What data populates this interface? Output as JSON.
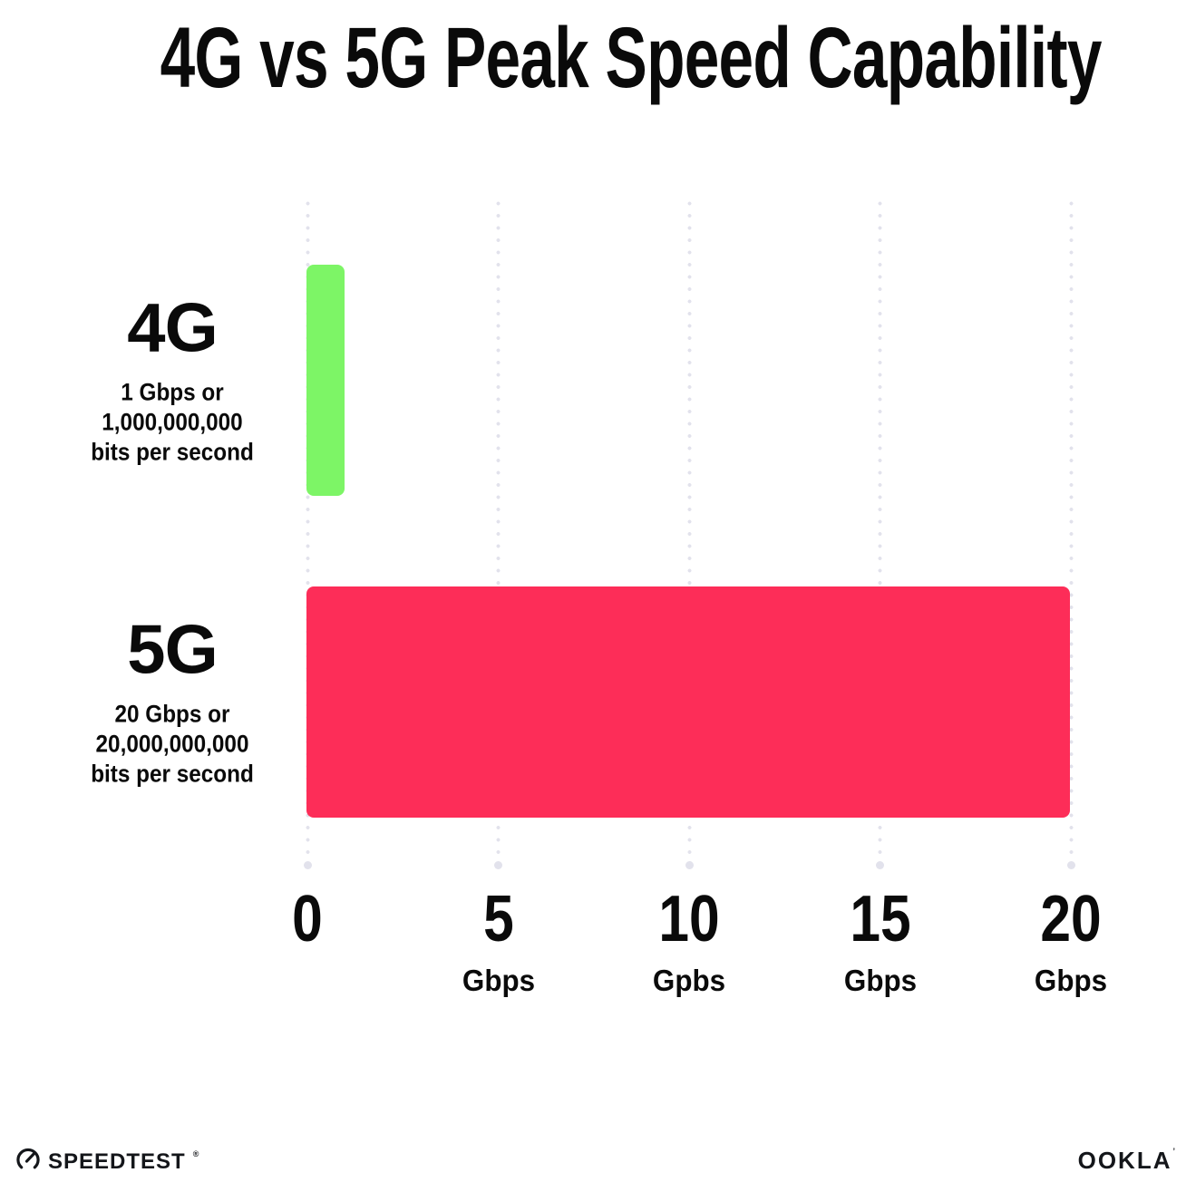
{
  "title": "4G vs 5G Peak Speed Capability",
  "chart_data": {
    "type": "bar",
    "orientation": "horizontal",
    "title": "4G vs 5G Peak Speed Capability",
    "categories": [
      "4G",
      "5G"
    ],
    "values": [
      1,
      20
    ],
    "series": [
      {
        "name": "4G",
        "value_gbps": 1,
        "bar_color": "#7DF566",
        "description_lines": [
          "1 Gbps or",
          "1,000,000,000",
          "bits per second"
        ]
      },
      {
        "name": "5G",
        "value_gbps": 20,
        "bar_color": "#FD2D58",
        "description_lines": [
          "20 Gbps or",
          "20,000,000,000",
          "bits per second"
        ]
      }
    ],
    "xlabel": "",
    "ylabel": "",
    "xlim": [
      0,
      20
    ],
    "x_ticks": [
      {
        "value": 0,
        "label": "0",
        "unit": ""
      },
      {
        "value": 5,
        "label": "5",
        "unit": "Gbps"
      },
      {
        "value": 10,
        "label": "10",
        "unit": "Gpbs"
      },
      {
        "value": 15,
        "label": "15",
        "unit": "Gbps"
      },
      {
        "value": 20,
        "label": "20",
        "unit": "Gbps"
      }
    ],
    "grid": "vertical-dotted",
    "gridline_color": "#E2E2EC",
    "legend": "none",
    "text_color": "#0A0A0A",
    "background_color": "#FFFFFF"
  },
  "footer": {
    "speedtest": {
      "label": "SPEEDTEST",
      "trademark": "®"
    },
    "ookla": {
      "label": "OOKLA",
      "trademark": "’"
    }
  }
}
